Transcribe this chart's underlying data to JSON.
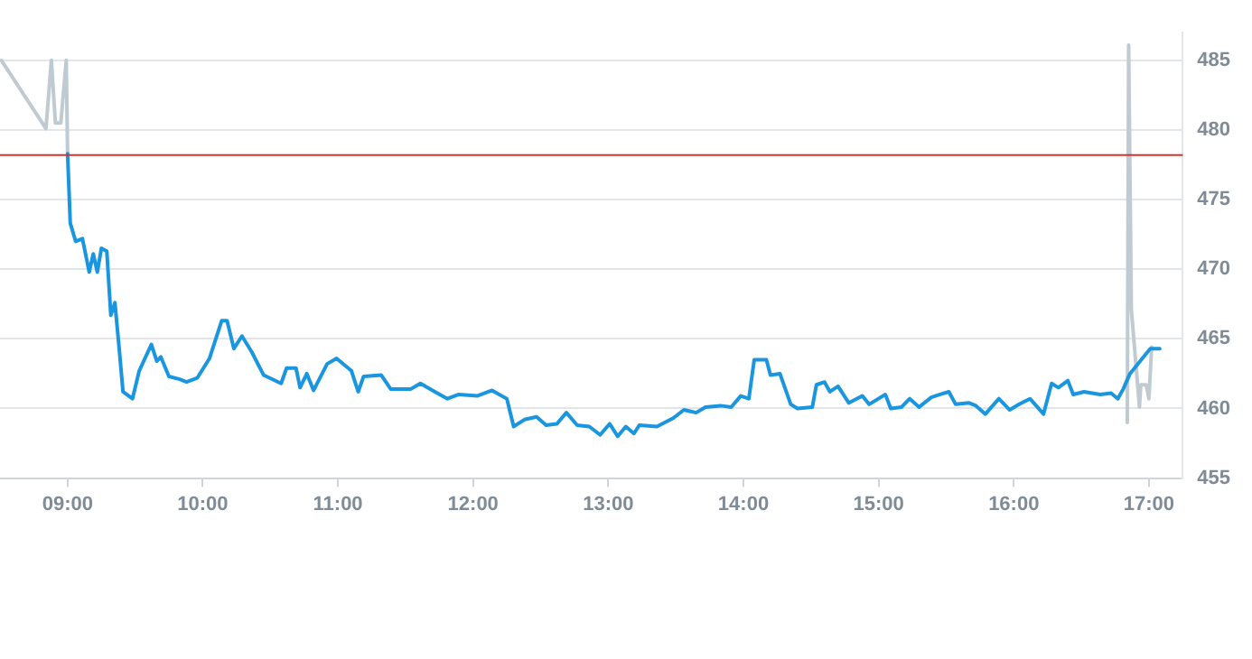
{
  "chart_data": {
    "type": "line",
    "xlim": [
      8.5,
      17.25
    ],
    "ylim": [
      455,
      487
    ],
    "xticks": [
      {
        "value": 9,
        "label": "09:00"
      },
      {
        "value": 10,
        "label": "10:00"
      },
      {
        "value": 11,
        "label": "11:00"
      },
      {
        "value": 12,
        "label": "12:00"
      },
      {
        "value": 13,
        "label": "13:00"
      },
      {
        "value": 14,
        "label": "14:00"
      },
      {
        "value": 15,
        "label": "15:00"
      },
      {
        "value": 16,
        "label": "16:00"
      },
      {
        "value": 17,
        "label": "17:00"
      }
    ],
    "yticks": [
      455,
      460,
      465,
      470,
      475,
      480,
      485
    ],
    "grid": "y",
    "legend": false,
    "marker": "none",
    "line_style": "solid",
    "ref_lines": [
      {
        "axis": "y",
        "value": 478.2,
        "color": "#d9322b"
      }
    ],
    "series": [
      {
        "color": "#bfcad2",
        "x": [
          8.51,
          8.84,
          8.88,
          8.91,
          8.95,
          8.99,
          9.0
        ],
        "values": [
          485,
          480.1,
          485,
          480.5,
          480.5,
          485,
          478.3
        ]
      },
      {
        "color": "#bfcad2",
        "x": [
          16.84,
          16.85,
          16.87,
          16.93,
          16.94,
          16.98,
          17.0,
          17.02
        ],
        "values": [
          459.0,
          486.1,
          467.1,
          460.1,
          461.7,
          461.7,
          460.7,
          464.4
        ]
      },
      {
        "color": "#1a96e0",
        "x": [
          9.0,
          9.02,
          9.06,
          9.11,
          9.16,
          9.19,
          9.22,
          9.25,
          9.29,
          9.32,
          9.35,
          9.38,
          9.41,
          9.48,
          9.53,
          9.62,
          9.66,
          9.69,
          9.75,
          9.83,
          9.88,
          9.96,
          10.05,
          10.14,
          10.18,
          10.23,
          10.29,
          10.36,
          10.45,
          10.58,
          10.62,
          10.69,
          10.72,
          10.77,
          10.82,
          10.92,
          10.99,
          11.1,
          11.15,
          11.19,
          11.32,
          11.39,
          11.54,
          11.61,
          11.7,
          11.81,
          11.89,
          12.03,
          12.14,
          12.25,
          12.3,
          12.38,
          12.47,
          12.54,
          12.62,
          12.69,
          12.77,
          12.86,
          12.94,
          13.01,
          13.07,
          13.13,
          13.19,
          13.23,
          13.36,
          13.48,
          13.56,
          13.65,
          13.72,
          13.83,
          13.91,
          13.98,
          14.04,
          14.08,
          14.17,
          14.2,
          14.27,
          14.35,
          14.4,
          14.51,
          14.54,
          14.6,
          14.64,
          14.7,
          14.78,
          14.88,
          14.93,
          15.05,
          15.09,
          15.17,
          15.23,
          15.3,
          15.39,
          15.45,
          15.52,
          15.57,
          15.67,
          15.72,
          15.79,
          15.89,
          15.97,
          16.04,
          16.12,
          16.22,
          16.28,
          16.33,
          16.4,
          16.44,
          16.52,
          16.64,
          16.72,
          16.77,
          16.81,
          16.86,
          17.01,
          17.08
        ],
        "values": [
          478.3,
          473.3,
          472.0,
          472.2,
          469.8,
          471.1,
          469.8,
          471.5,
          471.3,
          466.7,
          467.6,
          464.5,
          461.2,
          460.7,
          462.7,
          464.6,
          463.4,
          463.7,
          462.3,
          462.1,
          461.9,
          462.2,
          463.6,
          466.3,
          466.3,
          464.3,
          465.2,
          464.1,
          462.4,
          461.8,
          462.9,
          462.9,
          461.5,
          462.5,
          461.3,
          463.2,
          463.6,
          462.7,
          461.2,
          462.3,
          462.4,
          461.4,
          461.4,
          461.8,
          461.3,
          460.7,
          461.0,
          460.9,
          461.3,
          460.7,
          458.7,
          459.2,
          459.4,
          458.8,
          458.9,
          459.7,
          458.8,
          458.7,
          458.1,
          458.9,
          458.0,
          458.7,
          458.2,
          458.8,
          458.7,
          459.3,
          459.9,
          459.7,
          460.1,
          460.2,
          460.1,
          460.9,
          460.7,
          463.5,
          463.5,
          462.4,
          462.5,
          460.3,
          460.0,
          460.1,
          461.7,
          461.9,
          461.2,
          461.6,
          460.4,
          460.9,
          460.3,
          461.0,
          460.0,
          460.1,
          460.7,
          460.1,
          460.8,
          461.0,
          461.2,
          460.3,
          460.4,
          460.2,
          459.6,
          460.7,
          459.9,
          460.3,
          460.7,
          459.6,
          461.8,
          461.5,
          462.0,
          461.0,
          461.2,
          461.0,
          461.1,
          460.7,
          461.4,
          462.5,
          464.3,
          464.3
        ]
      }
    ]
  }
}
